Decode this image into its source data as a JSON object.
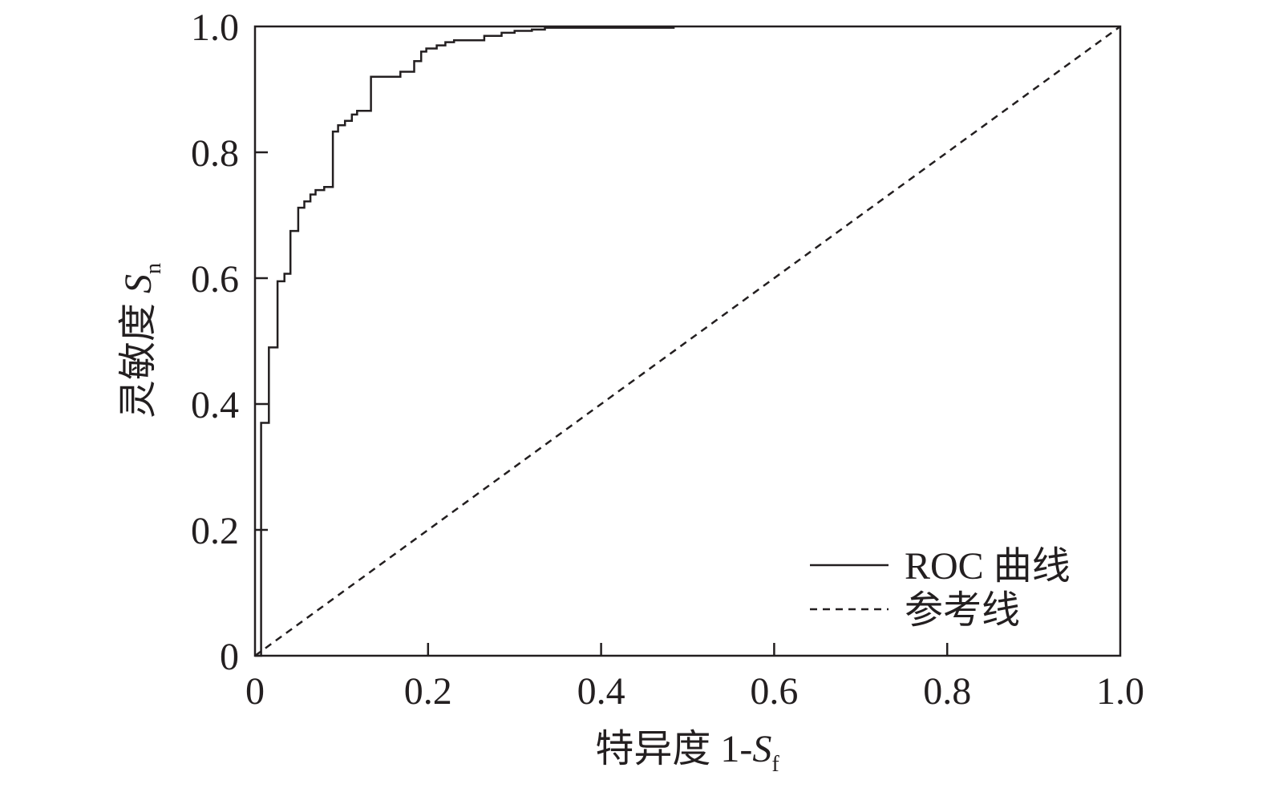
{
  "chart_data": {
    "type": "line",
    "title": "",
    "xlabel": {
      "prefix": "特异度 1-",
      "var": "S",
      "sub": "f"
    },
    "ylabel": {
      "prefix": "灵敏度 ",
      "var": "S",
      "sub": "n"
    },
    "xlim": [
      0,
      1.0
    ],
    "ylim": [
      0,
      1.0
    ],
    "x_ticks": [
      0,
      0.2,
      0.4,
      0.6,
      0.8,
      1.0
    ],
    "x_tick_labels": [
      "0",
      "0.2",
      "0.4",
      "0.6",
      "0.8",
      "1.0"
    ],
    "y_ticks": [
      0,
      0.2,
      0.4,
      0.6,
      0.8,
      1.0
    ],
    "y_tick_labels": [
      "0",
      "0.2",
      "0.4",
      "0.6",
      "0.8",
      "1.0"
    ],
    "grid": false,
    "legend_position": "bottom-right",
    "series": [
      {
        "name": "ROC 曲线",
        "style": "solid",
        "color": "#231f20",
        "x": [
          0.0,
          0.007,
          0.007,
          0.01,
          0.01,
          0.016,
          0.016,
          0.026,
          0.026,
          0.034,
          0.034,
          0.041,
          0.041,
          0.05,
          0.05,
          0.057,
          0.057,
          0.064,
          0.064,
          0.07,
          0.07,
          0.08,
          0.08,
          0.09,
          0.09,
          0.096,
          0.096,
          0.104,
          0.104,
          0.112,
          0.112,
          0.118,
          0.118,
          0.126,
          0.126,
          0.134,
          0.134,
          0.168,
          0.168,
          0.184,
          0.184,
          0.192,
          0.192,
          0.198,
          0.198,
          0.21,
          0.21,
          0.22,
          0.22,
          0.23,
          0.23,
          0.265,
          0.265,
          0.285,
          0.285,
          0.3,
          0.3,
          0.32,
          0.32,
          0.335,
          0.335,
          0.485
        ],
        "y": [
          0.0,
          0.0,
          0.37,
          0.37,
          0.37,
          0.37,
          0.49,
          0.49,
          0.595,
          0.595,
          0.607,
          0.607,
          0.675,
          0.675,
          0.712,
          0.712,
          0.722,
          0.722,
          0.733,
          0.733,
          0.74,
          0.74,
          0.745,
          0.745,
          0.833,
          0.833,
          0.843,
          0.843,
          0.85,
          0.85,
          0.86,
          0.86,
          0.866,
          0.866,
          0.866,
          0.866,
          0.92,
          0.92,
          0.928,
          0.928,
          0.945,
          0.945,
          0.96,
          0.96,
          0.965,
          0.965,
          0.97,
          0.97,
          0.975,
          0.975,
          0.978,
          0.978,
          0.985,
          0.985,
          0.99,
          0.99,
          0.993,
          0.993,
          0.995,
          0.995,
          0.998,
          0.998
        ]
      },
      {
        "name": "参考线",
        "style": "dashed",
        "color": "#231f20",
        "x": [
          0,
          1.0
        ],
        "y": [
          0,
          1.0
        ]
      }
    ]
  }
}
